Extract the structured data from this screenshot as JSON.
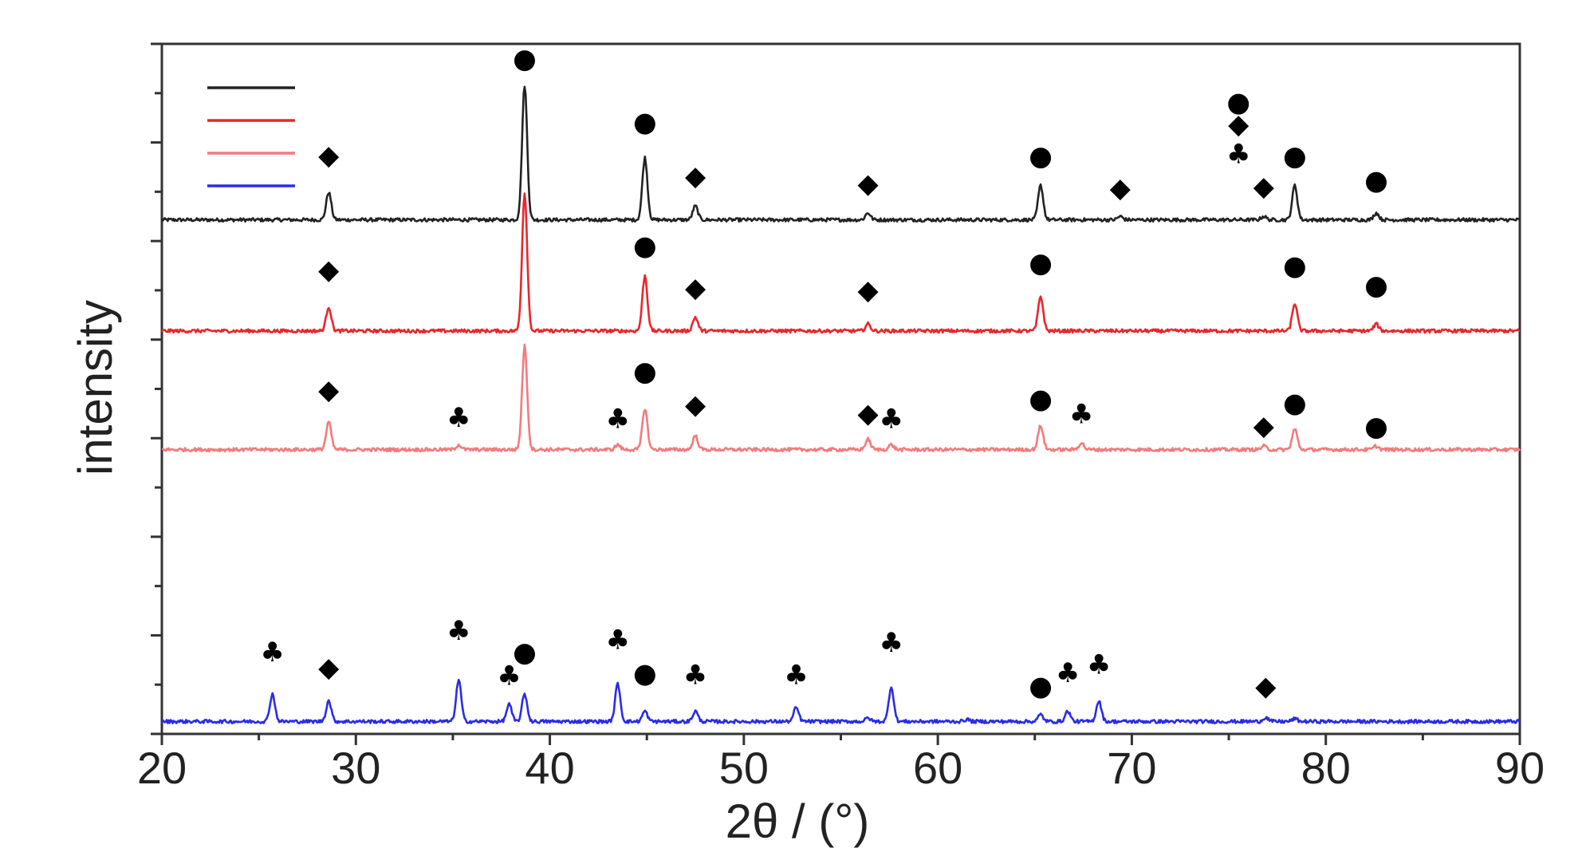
{
  "chart_data": {
    "type": "line",
    "xlabel": "2θ / (°)",
    "ylabel": "intensity",
    "xlim": [
      20,
      90
    ],
    "xticks": [
      "20",
      "30",
      "40",
      "50",
      "60",
      "70",
      "80",
      "90"
    ],
    "ylim": [
      0,
      100
    ],
    "grid": false,
    "legend_position": "top-left",
    "symbols": {
      "circle": "●",
      "diamond": "◆",
      "club": "♣"
    },
    "series": [
      {
        "color": "#222222",
        "baseline": 74.5,
        "peaks": [
          [
            28.6,
            4
          ],
          [
            38.7,
            19.5
          ],
          [
            44.9,
            9
          ],
          [
            47.5,
            2
          ],
          [
            56.4,
            1
          ],
          [
            65.3,
            5
          ],
          [
            69.4,
            0.5
          ],
          [
            76.8,
            0.5
          ],
          [
            78.4,
            5
          ],
          [
            82.6,
            1
          ]
        ],
        "markers": [
          {
            "x": 28.6,
            "y": 83.8,
            "symbol": "diamond"
          },
          {
            "x": 38.7,
            "y": 97.8,
            "symbol": "circle"
          },
          {
            "x": 44.9,
            "y": 88.6,
            "symbol": "circle"
          },
          {
            "x": 47.5,
            "y": 80.8,
            "symbol": "diamond"
          },
          {
            "x": 56.4,
            "y": 79.7,
            "symbol": "diamond"
          },
          {
            "x": 65.3,
            "y": 83.7,
            "symbol": "circle"
          },
          {
            "x": 69.4,
            "y": 79.1,
            "symbol": "diamond"
          },
          {
            "x": 76.8,
            "y": 79.3,
            "symbol": "diamond"
          },
          {
            "x": 78.4,
            "y": 83.7,
            "symbol": "circle"
          },
          {
            "x": 82.6,
            "y": 80.2,
            "symbol": "circle"
          }
        ]
      },
      {
        "color": "#e8262b",
        "baseline": 58.4,
        "peaks": [
          [
            28.6,
            3.5
          ],
          [
            38.7,
            20
          ],
          [
            44.9,
            8
          ],
          [
            47.5,
            2
          ],
          [
            56.4,
            1
          ],
          [
            65.3,
            5
          ],
          [
            78.4,
            4
          ],
          [
            82.6,
            1
          ]
        ],
        "markers": [
          {
            "x": 28.6,
            "y": 67.2,
            "symbol": "diamond"
          },
          {
            "x": 44.9,
            "y": 70.7,
            "symbol": "circle"
          },
          {
            "x": 47.5,
            "y": 64.6,
            "symbol": "diamond"
          },
          {
            "x": 56.4,
            "y": 64.3,
            "symbol": "diamond"
          },
          {
            "x": 65.3,
            "y": 68.2,
            "symbol": "circle"
          },
          {
            "x": 78.4,
            "y": 67.8,
            "symbol": "circle"
          },
          {
            "x": 82.6,
            "y": 65.0,
            "symbol": "circle"
          }
        ]
      },
      {
        "color": "#f27b7d",
        "baseline": 41.2,
        "peaks": [
          [
            28.6,
            4
          ],
          [
            35.3,
            0.7
          ],
          [
            38.7,
            15
          ],
          [
            43.5,
            0.7
          ],
          [
            44.9,
            6
          ],
          [
            47.5,
            2
          ],
          [
            56.4,
            1.5
          ],
          [
            57.6,
            0.7
          ],
          [
            65.3,
            3.5
          ],
          [
            67.4,
            1
          ],
          [
            76.8,
            0.5
          ],
          [
            78.4,
            3
          ],
          [
            82.6,
            0.5
          ]
        ],
        "markers": [
          {
            "x": 28.6,
            "y": 49.8,
            "symbol": "diamond"
          },
          {
            "x": 35.3,
            "y": 45.8,
            "symbol": "club"
          },
          {
            "x": 43.5,
            "y": 45.6,
            "symbol": "club"
          },
          {
            "x": 44.9,
            "y": 52.5,
            "symbol": "circle"
          },
          {
            "x": 47.5,
            "y": 47.7,
            "symbol": "diamond"
          },
          {
            "x": 56.4,
            "y": 46.4,
            "symbol": "diamond"
          },
          {
            "x": 57.6,
            "y": 45.6,
            "symbol": "club"
          },
          {
            "x": 65.3,
            "y": 48.5,
            "symbol": "circle"
          },
          {
            "x": 67.4,
            "y": 46.3,
            "symbol": "club"
          },
          {
            "x": 76.8,
            "y": 44.6,
            "symbol": "diamond"
          },
          {
            "x": 78.4,
            "y": 47.9,
            "symbol": "circle"
          },
          {
            "x": 82.6,
            "y": 44.5,
            "symbol": "circle"
          }
        ]
      },
      {
        "color": "#2b2be8",
        "baseline": 1.8,
        "peaks": [
          [
            25.7,
            4
          ],
          [
            28.6,
            3
          ],
          [
            35.3,
            6
          ],
          [
            37.9,
            2.5
          ],
          [
            38.7,
            4
          ],
          [
            43.5,
            5.5
          ],
          [
            44.9,
            1.5
          ],
          [
            47.5,
            1.5
          ],
          [
            52.7,
            2
          ],
          [
            56.4,
            0.5
          ],
          [
            57.6,
            5
          ],
          [
            61.5,
            0.3
          ],
          [
            65.3,
            1
          ],
          [
            66.7,
            1.5
          ],
          [
            68.3,
            3
          ],
          [
            76.9,
            0.6
          ],
          [
            78.4,
            0.4
          ]
        ],
        "markers": [
          {
            "x": 25.7,
            "y": 11.8,
            "symbol": "club"
          },
          {
            "x": 28.6,
            "y": 9.6,
            "symbol": "diamond"
          },
          {
            "x": 35.3,
            "y": 14.9,
            "symbol": "club"
          },
          {
            "x": 37.9,
            "y": 8.4,
            "symbol": "club"
          },
          {
            "x": 38.7,
            "y": 11.8,
            "symbol": "circle"
          },
          {
            "x": 43.5,
            "y": 13.6,
            "symbol": "club"
          },
          {
            "x": 44.9,
            "y": 8.7,
            "symbol": "circle"
          },
          {
            "x": 47.5,
            "y": 8.5,
            "symbol": "club"
          },
          {
            "x": 52.7,
            "y": 8.5,
            "symbol": "club"
          },
          {
            "x": 57.6,
            "y": 13.2,
            "symbol": "club"
          },
          {
            "x": 65.3,
            "y": 6.9,
            "symbol": "circle"
          },
          {
            "x": 66.7,
            "y": 8.8,
            "symbol": "club"
          },
          {
            "x": 68.3,
            "y": 10.0,
            "symbol": "club"
          },
          {
            "x": 76.9,
            "y": 6.9,
            "symbol": "diamond"
          }
        ]
      }
    ],
    "legend_key": [
      {
        "x": 75.5,
        "y": 91.5,
        "symbol": "circle"
      },
      {
        "x": 75.5,
        "y": 88.3,
        "symbol": "diamond"
      },
      {
        "x": 75.5,
        "y": 84.0,
        "symbol": "club"
      }
    ]
  }
}
